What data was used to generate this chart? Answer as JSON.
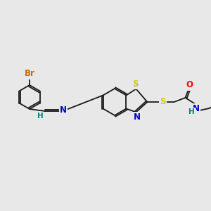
{
  "background_color": "#e8e8e8",
  "bond_color": "#1a1a1a",
  "atom_colors": {
    "Br": "#cc6600",
    "S": "#cccc00",
    "N": "#0000cc",
    "O": "#ff0000",
    "H": "#008080",
    "C": "#1a1a1a"
  },
  "lw": 1.3,
  "fs": 8.5,
  "fig_w": 3.0,
  "fig_h": 3.0,
  "dpi": 100
}
